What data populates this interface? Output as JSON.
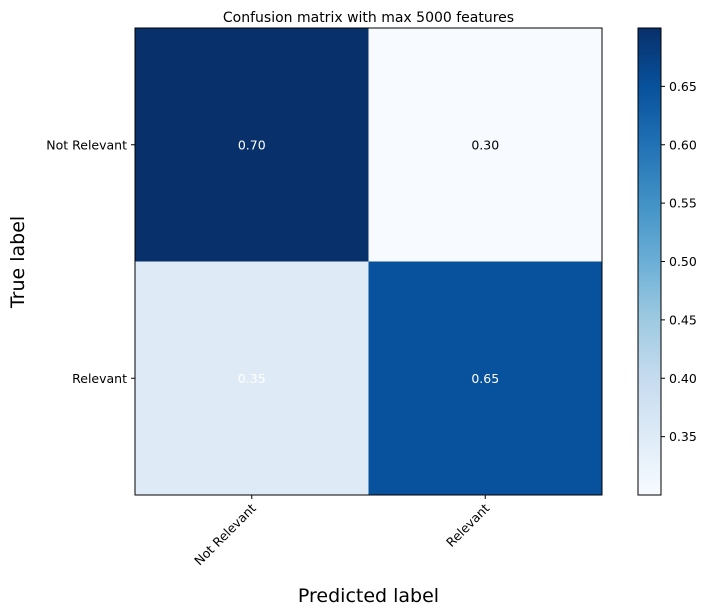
{
  "chart_data": {
    "type": "heatmap",
    "title": "Confusion matrix with max 5000 features",
    "xlabel": "Predicted label",
    "ylabel": "True label",
    "row_labels": [
      "Not Relevant",
      "Relevant"
    ],
    "col_labels": [
      "Not Relevant",
      "Relevant"
    ],
    "values": [
      [
        0.7,
        0.3
      ],
      [
        0.35,
        0.65
      ]
    ],
    "cell_labels": [
      [
        "0.70",
        "0.30"
      ],
      [
        "0.35",
        "0.65"
      ]
    ],
    "colormap": "Blues",
    "colorbar": {
      "range": [
        0.3,
        0.7
      ],
      "ticks": [
        0.35,
        0.4,
        0.45,
        0.5,
        0.55,
        0.6,
        0.65
      ],
      "tick_labels": [
        "0.35",
        "0.40",
        "0.45",
        "0.50",
        "0.55",
        "0.60",
        "0.65"
      ]
    },
    "grid": false
  }
}
